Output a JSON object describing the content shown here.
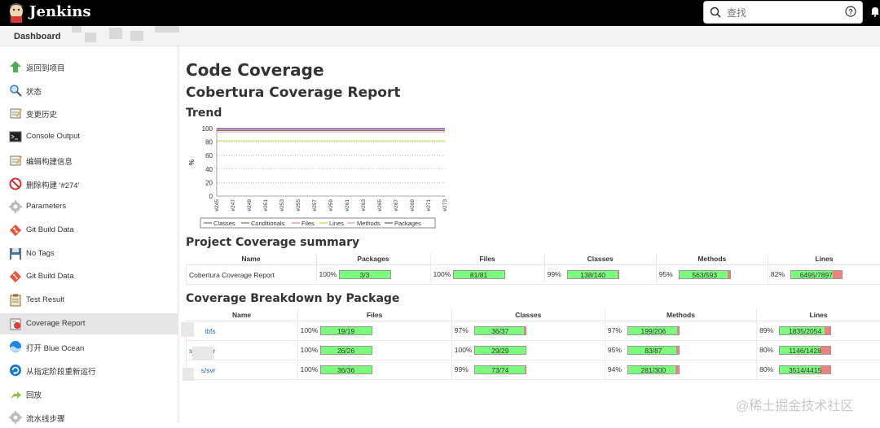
{
  "header": {
    "brand": "Jenkins",
    "search_placeholder": "查找"
  },
  "breadcrumb": {
    "label": "Dashboard"
  },
  "sidebar": {
    "items": [
      {
        "label": "返回到项目",
        "icon": "up-arrow-icon"
      },
      {
        "label": "状态",
        "icon": "search-icon"
      },
      {
        "label": "变更历史",
        "icon": "notepad-icon"
      },
      {
        "label": "Console Output",
        "icon": "terminal-icon"
      },
      {
        "label": "编辑构建信息",
        "icon": "notepad-icon"
      },
      {
        "label": "删除构建 '#274'",
        "icon": "no-entry-icon"
      },
      {
        "label": "Parameters",
        "icon": "gear-icon"
      },
      {
        "label": "Git Build Data",
        "icon": "git-icon"
      },
      {
        "label": "No Tags",
        "icon": "save-icon"
      },
      {
        "label": "Git Build Data",
        "icon": "git-icon"
      },
      {
        "label": "Test Result",
        "icon": "clipboard-icon"
      },
      {
        "label": "Coverage Report",
        "icon": "report-icon",
        "active": true
      },
      {
        "label": "打开 Blue Ocean",
        "icon": "blue-ocean-icon"
      },
      {
        "label": "从指定阶段重新运行",
        "icon": "refresh-icon"
      },
      {
        "label": "回放",
        "icon": "replay-icon"
      },
      {
        "label": "流水线步骤",
        "icon": "gear-icon"
      }
    ]
  },
  "main": {
    "title": "Code Coverage",
    "subtitle": "Cobertura Coverage Report",
    "trend_heading": "Trend",
    "summary_heading": "Project Coverage summary",
    "breakdown_heading": "Coverage Breakdown by Package"
  },
  "chart_data": {
    "type": "line",
    "ylabel": "%",
    "ylim": [
      0,
      100
    ],
    "yticks": [
      0,
      20,
      40,
      60,
      80,
      100
    ],
    "categories": [
      "#245",
      "#247",
      "#249",
      "#251",
      "#253",
      "#255",
      "#257",
      "#259",
      "#261",
      "#263",
      "#265",
      "#267",
      "#269",
      "#271",
      "#273"
    ],
    "series": [
      {
        "name": "Classes",
        "values": [
          99,
          99,
          99,
          99,
          99,
          99,
          99,
          99,
          99,
          99,
          99,
          99,
          99,
          99,
          99
        ]
      },
      {
        "name": "Conditionals",
        "values": [
          97,
          97,
          97,
          97,
          97,
          97,
          97,
          97,
          97,
          97,
          97,
          97,
          97,
          97,
          97
        ]
      },
      {
        "name": "Files",
        "values": [
          100,
          100,
          100,
          100,
          100,
          100,
          100,
          100,
          100,
          100,
          100,
          100,
          100,
          100,
          100
        ]
      },
      {
        "name": "Lines",
        "values": [
          82,
          82,
          82,
          82,
          82,
          82,
          82,
          82,
          82,
          82,
          82,
          82,
          82,
          82,
          82
        ]
      },
      {
        "name": "Methods",
        "values": [
          95,
          95,
          95,
          95,
          95,
          95,
          95,
          95,
          95,
          95,
          95,
          95,
          95,
          95,
          95
        ]
      },
      {
        "name": "Packages",
        "values": [
          100,
          100,
          100,
          100,
          100,
          100,
          100,
          100,
          100,
          100,
          100,
          100,
          100,
          100,
          100
        ]
      }
    ],
    "colors": {
      "Classes": "#8a5a9a",
      "Conditionals": "#8a6a4a",
      "Files": "#e07ab0",
      "Lines": "#c8d84a",
      "Methods": "#d9a0c8",
      "Packages": "#6a4a8a"
    },
    "grid": true,
    "legend": "bottom"
  },
  "summary_table": {
    "headers": [
      "Name",
      "Packages",
      "Files",
      "Classes",
      "Methods",
      "Lines"
    ],
    "rows": [
      {
        "name": "Cobertura Coverage Report",
        "cells": [
          {
            "pct": "100%",
            "label": "3/3",
            "fill": 1.0
          },
          {
            "pct": "100%",
            "label": "81/81",
            "fill": 1.0
          },
          {
            "pct": "99%",
            "label": "138/140",
            "fill": 0.99
          },
          {
            "pct": "95%",
            "label": "563/593",
            "fill": 0.95
          },
          {
            "pct": "82%",
            "label": "6495/7897",
            "fill": 0.82
          }
        ]
      }
    ]
  },
  "breakdown_table": {
    "headers": [
      "Name",
      "Files",
      "Classes",
      "Methods",
      "Lines"
    ],
    "rows": [
      {
        "name": "ibfs",
        "cells": [
          {
            "pct": "100%",
            "label": "19/19",
            "fill": 1.0
          },
          {
            "pct": "97%",
            "label": "36/37",
            "fill": 0.97
          },
          {
            "pct": "97%",
            "label": "199/206",
            "fill": 0.97
          },
          {
            "pct": "89%",
            "label": "1835/2054",
            "fill": 0.89
          }
        ]
      },
      {
        "name": "s/master",
        "cells": [
          {
            "pct": "100%",
            "label": "26/26",
            "fill": 1.0
          },
          {
            "pct": "100%",
            "label": "29/29",
            "fill": 1.0
          },
          {
            "pct": "95%",
            "label": "83/87",
            "fill": 0.95
          },
          {
            "pct": "80%",
            "label": "1146/1428",
            "fill": 0.8
          }
        ]
      },
      {
        "name": "s/svr",
        "cells": [
          {
            "pct": "100%",
            "label": "36/36",
            "fill": 1.0
          },
          {
            "pct": "99%",
            "label": "73/74",
            "fill": 0.99
          },
          {
            "pct": "94%",
            "label": "281/300",
            "fill": 0.94
          },
          {
            "pct": "80%",
            "label": "3514/4415",
            "fill": 0.8
          }
        ]
      }
    ]
  },
  "watermark": "@稀土掘金技术社区"
}
